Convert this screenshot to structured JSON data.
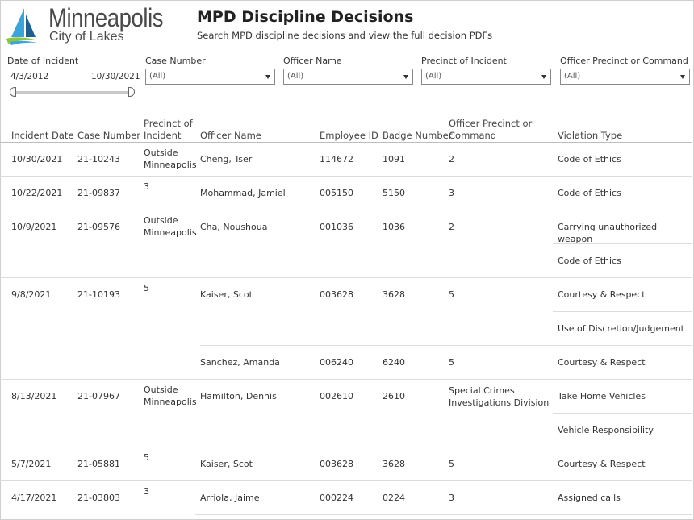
{
  "header": {
    "logo_city": "Minneapolis",
    "logo_tagline": "City of Lakes",
    "title": "MPD Discipline Decisions",
    "subtitle": "Search MPD discipline decisions and view the full decision PDFs"
  },
  "filters": {
    "date": {
      "label": "Date of Incident",
      "start": "4/3/2012",
      "end": "10/30/2021"
    },
    "case_number": {
      "label": "Case Number",
      "value": "(All)"
    },
    "officer_name": {
      "label": "Officer Name",
      "value": "(All)"
    },
    "precinct_of_incident": {
      "label": "Precinct of Incident",
      "value": "(All)"
    },
    "officer_precinct": {
      "label": "Officer Precinct or Command",
      "value": "(All)"
    }
  },
  "table": {
    "columns": {
      "incident_date": "Incident Date",
      "case_number": "Case Number",
      "precinct_line1": "Precinct of",
      "precinct_line2": "Incident",
      "officer_name": "Officer Name",
      "employee_id": "Employee ID",
      "badge_number": "Badge Number",
      "officer_precinct_line1": "Officer Precinct or",
      "officer_precinct_line2": "Command",
      "violation_type": "Violation Type"
    },
    "cases": [
      {
        "date": "10/30/2021",
        "case": "21-10243",
        "precinct": [
          "Outside",
          "Minneapolis"
        ],
        "officers": [
          {
            "name": "Cheng, Tser",
            "emp": "114672",
            "badge": "1091",
            "command": [
              "2"
            ],
            "violations": [
              "Code of Ethics"
            ]
          }
        ]
      },
      {
        "date": "10/22/2021",
        "case": "21-09837",
        "precinct": [
          "3"
        ],
        "officers": [
          {
            "name": "Mohammad, Jamiel",
            "emp": "005150",
            "badge": "5150",
            "command": [
              "3"
            ],
            "violations": [
              "Code of Ethics"
            ]
          }
        ]
      },
      {
        "date": "10/9/2021",
        "case": "21-09576",
        "precinct": [
          "Outside",
          "Minneapolis"
        ],
        "officers": [
          {
            "name": "Cha, Noushoua",
            "emp": "001036",
            "badge": "1036",
            "command": [
              "2"
            ],
            "violations": [
              "Carrying unauthorized weapon",
              "Code of Ethics"
            ]
          }
        ]
      },
      {
        "date": "9/8/2021",
        "case": "21-10193",
        "precinct": [
          "5"
        ],
        "officers": [
          {
            "name": "Kaiser, Scot",
            "emp": "003628",
            "badge": "3628",
            "command": [
              "5"
            ],
            "violations": [
              "Courtesy & Respect",
              "Use of Discretion/Judgement"
            ]
          },
          {
            "name": "Sanchez, Amanda",
            "emp": "006240",
            "badge": "6240",
            "command": [
              "5"
            ],
            "violations": [
              "Courtesy & Respect"
            ]
          }
        ]
      },
      {
        "date": "8/13/2021",
        "case": "21-07967",
        "precinct": [
          "Outside",
          "Minneapolis"
        ],
        "officers": [
          {
            "name": "Hamilton, Dennis",
            "emp": "002610",
            "badge": "2610",
            "command": [
              "Special Crimes",
              "Investigations Division"
            ],
            "violations": [
              "Take Home Vehicles",
              "Vehicle Responsibility"
            ]
          }
        ]
      },
      {
        "date": "5/7/2021",
        "case": "21-05881",
        "precinct": [
          "5"
        ],
        "officers": [
          {
            "name": "Kaiser, Scot",
            "emp": "003628",
            "badge": "3628",
            "command": [
              "5"
            ],
            "violations": [
              "Courtesy & Respect"
            ]
          }
        ]
      },
      {
        "date": "4/17/2021",
        "case": "21-03803",
        "precinct": [
          "3"
        ],
        "officers": [
          {
            "name": "Arriola, Jaime",
            "emp": "000224",
            "badge": "0224",
            "command": [
              "3"
            ],
            "violations": [
              "Assigned calls"
            ]
          }
        ]
      }
    ]
  },
  "colors": {
    "logo_blue_light": "#3aa5dc",
    "logo_blue_dark": "#1f5f8f",
    "logo_green": "#8cc63f"
  }
}
